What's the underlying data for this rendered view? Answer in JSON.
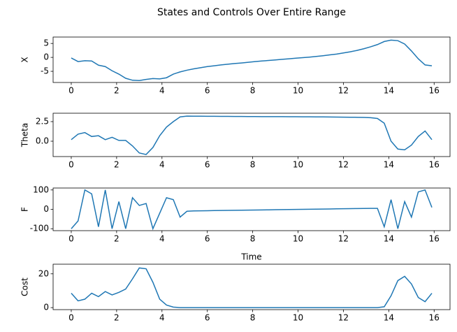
{
  "title": "States and Controls Over Entire Range",
  "chart_data": [
    {
      "type": "line",
      "ylabel": "X",
      "color": "#1f77b4",
      "x": [
        0,
        0.3,
        0.6,
        0.9,
        1.2,
        1.5,
        1.8,
        2.1,
        2.4,
        2.7,
        3.0,
        3.3,
        3.6,
        3.9,
        4.2,
        4.5,
        4.8,
        5.1,
        5.4,
        5.7,
        6.0,
        6.3,
        6.6,
        6.9,
        7.2,
        7.5,
        7.8,
        8.1,
        8.4,
        8.7,
        9.0,
        9.3,
        9.6,
        9.9,
        10.2,
        10.5,
        10.8,
        11.1,
        11.4,
        11.7,
        12.0,
        12.3,
        12.6,
        12.9,
        13.2,
        13.5,
        13.8,
        14.1,
        14.4,
        14.7,
        15.0,
        15.3,
        15.6,
        15.9
      ],
      "values": [
        -0.2,
        -1.5,
        -1.2,
        -1.3,
        -2.8,
        -3.3,
        -4.8,
        -6,
        -7.5,
        -8.2,
        -8.3,
        -7.9,
        -7.6,
        -7.7,
        -7.3,
        -6,
        -5.2,
        -4.6,
        -4.1,
        -3.7,
        -3.3,
        -3.0,
        -2.7,
        -2.45,
        -2.2,
        -2.0,
        -1.75,
        -1.5,
        -1.3,
        -1.1,
        -0.9,
        -0.7,
        -0.5,
        -0.3,
        -0.1,
        0.1,
        0.35,
        0.6,
        0.9,
        1.2,
        1.6,
        2.0,
        2.5,
        3.1,
        3.8,
        4.6,
        5.7,
        6.2,
        6.0,
        4.8,
        2.3,
        -0.5,
        -2.7,
        -3.0
      ],
      "xlim": [
        -0.8,
        16.7
      ],
      "xticks": [
        0,
        2,
        4,
        6,
        8,
        10,
        12,
        14,
        16
      ],
      "ylim": [
        -9,
        7.3
      ],
      "yticks": [
        -5,
        0,
        5
      ]
    },
    {
      "type": "line",
      "ylabel": "Theta",
      "color": "#1f77b4",
      "x": [
        0,
        0.3,
        0.6,
        0.9,
        1.2,
        1.5,
        1.8,
        2.1,
        2.4,
        2.7,
        3.0,
        3.3,
        3.6,
        3.9,
        4.2,
        4.5,
        4.8,
        5.1,
        5.4,
        5.7,
        6.0,
        6.3,
        6.6,
        6.9,
        7.2,
        7.5,
        7.8,
        8.1,
        8.4,
        8.7,
        9.0,
        9.3,
        9.6,
        9.9,
        10.2,
        10.5,
        10.8,
        11.1,
        11.4,
        11.7,
        12.0,
        12.3,
        12.6,
        12.9,
        13.2,
        13.5,
        13.8,
        14.1,
        14.4,
        14.7,
        15.0,
        15.3,
        15.6,
        15.9
      ],
      "values": [
        0.2,
        0.9,
        1.1,
        0.6,
        0.7,
        0.2,
        0.5,
        0.1,
        0.1,
        -0.6,
        -1.5,
        -1.7,
        -0.8,
        0.7,
        1.8,
        2.5,
        3.1,
        3.2,
        3.19,
        3.19,
        3.18,
        3.18,
        3.17,
        3.17,
        3.16,
        3.16,
        3.15,
        3.15,
        3.14,
        3.14,
        3.13,
        3.13,
        3.12,
        3.12,
        3.11,
        3.11,
        3.1,
        3.1,
        3.09,
        3.08,
        3.07,
        3.06,
        3.05,
        3.03,
        3.0,
        2.9,
        2.3,
        0.0,
        -1.0,
        -1.1,
        -0.5,
        0.6,
        1.3,
        0.2
      ],
      "xlim": [
        -0.8,
        16.7
      ],
      "xticks": [
        0,
        2,
        4,
        6,
        8,
        10,
        12,
        14,
        16
      ],
      "ylim": [
        -1.96,
        3.57
      ],
      "yticks": [
        {
          "value": 0,
          "label": "0.0"
        },
        2.5
      ]
    },
    {
      "type": "line",
      "ylabel": "F",
      "xlabel": "Time",
      "color": "#1f77b4",
      "x": [
        0,
        0.3,
        0.6,
        0.9,
        1.2,
        1.5,
        1.8,
        2.1,
        2.4,
        2.7,
        3.0,
        3.3,
        3.6,
        3.9,
        4.2,
        4.5,
        4.8,
        5.1,
        5.4,
        5.7,
        6.0,
        6.3,
        6.6,
        6.9,
        7.2,
        7.5,
        7.8,
        8.1,
        8.4,
        8.7,
        9.0,
        9.3,
        9.6,
        9.9,
        10.2,
        10.5,
        10.8,
        11.1,
        11.4,
        11.7,
        12.0,
        12.3,
        12.6,
        12.9,
        13.2,
        13.5,
        13.8,
        14.1,
        14.4,
        14.7,
        15.0,
        15.3,
        15.6,
        15.9
      ],
      "values": [
        -100,
        -60,
        100,
        80,
        -90,
        100,
        -100,
        40,
        -100,
        60,
        20,
        30,
        -100,
        -20,
        60,
        50,
        -40,
        -10,
        -8,
        -7.5,
        -7,
        -6.5,
        -6,
        -5.5,
        -5,
        -4.5,
        -4,
        -3.5,
        -3,
        -2.5,
        -2,
        -1.5,
        -1,
        -0.5,
        0,
        0.5,
        1,
        1.5,
        2,
        2.5,
        3,
        3.5,
        4,
        4.5,
        5,
        5,
        -90,
        50,
        -100,
        40,
        -40,
        90,
        100,
        10
      ],
      "xlim": [
        -0.8,
        16.7
      ],
      "xticks": [
        0,
        2,
        4,
        6,
        8,
        10,
        12,
        14,
        16
      ],
      "ylim": [
        -110,
        110
      ],
      "yticks": [
        -100,
        0,
        100
      ]
    },
    {
      "type": "line",
      "ylabel": "Cost",
      "color": "#1f77b4",
      "x": [
        0,
        0.3,
        0.6,
        0.9,
        1.2,
        1.5,
        1.8,
        2.1,
        2.4,
        2.7,
        3.0,
        3.3,
        3.6,
        3.9,
        4.2,
        4.5,
        4.8,
        5.1,
        5.4,
        5.7,
        6.0,
        6.3,
        6.6,
        6.9,
        7.2,
        7.5,
        7.8,
        8.1,
        8.4,
        8.7,
        9.0,
        9.3,
        9.6,
        9.9,
        10.2,
        10.5,
        10.8,
        11.1,
        11.4,
        11.7,
        12.0,
        12.3,
        12.6,
        12.9,
        13.2,
        13.5,
        13.8,
        14.1,
        14.4,
        14.7,
        15.0,
        15.3,
        15.6,
        15.9
      ],
      "values": [
        8.5,
        4,
        5,
        8.5,
        6.5,
        9.5,
        7.5,
        9,
        11,
        17,
        23.5,
        23,
        15,
        5,
        1.5,
        0.3,
        0,
        0,
        0,
        0,
        0,
        0,
        0,
        0,
        0,
        0,
        0,
        0,
        0,
        0,
        0,
        0,
        0,
        0,
        0,
        0,
        0,
        0,
        0,
        0,
        0,
        0,
        0,
        0,
        0,
        0,
        0.5,
        7,
        16,
        18.5,
        14,
        6,
        3.5,
        8.5
      ],
      "xlim": [
        -0.8,
        16.7
      ],
      "xticks": [
        0,
        2,
        4,
        6,
        8,
        10,
        12,
        14,
        16
      ],
      "ylim": [
        -1.2,
        25.7
      ],
      "yticks": [
        0,
        20
      ]
    }
  ]
}
